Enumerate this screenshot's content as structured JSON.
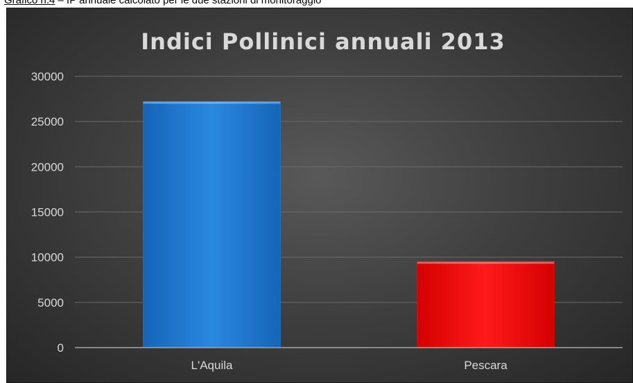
{
  "caption": {
    "label": "Grafico n.4",
    "text": " – IP annuale calcolato per le due stazioni di monitoraggio"
  },
  "chart_data": {
    "type": "bar",
    "title": "Indici Pollinici annuali 2013",
    "categories": [
      "L'Aquila",
      "Pescara"
    ],
    "values": [
      27200,
      9500
    ],
    "colors": [
      "#1f77d4",
      "#ff0000"
    ],
    "ylim": [
      0,
      30000
    ],
    "yticks": [
      0,
      5000,
      10000,
      15000,
      20000,
      25000,
      30000
    ],
    "xlabel": "",
    "ylabel": "",
    "grid": true,
    "legend": "none"
  }
}
